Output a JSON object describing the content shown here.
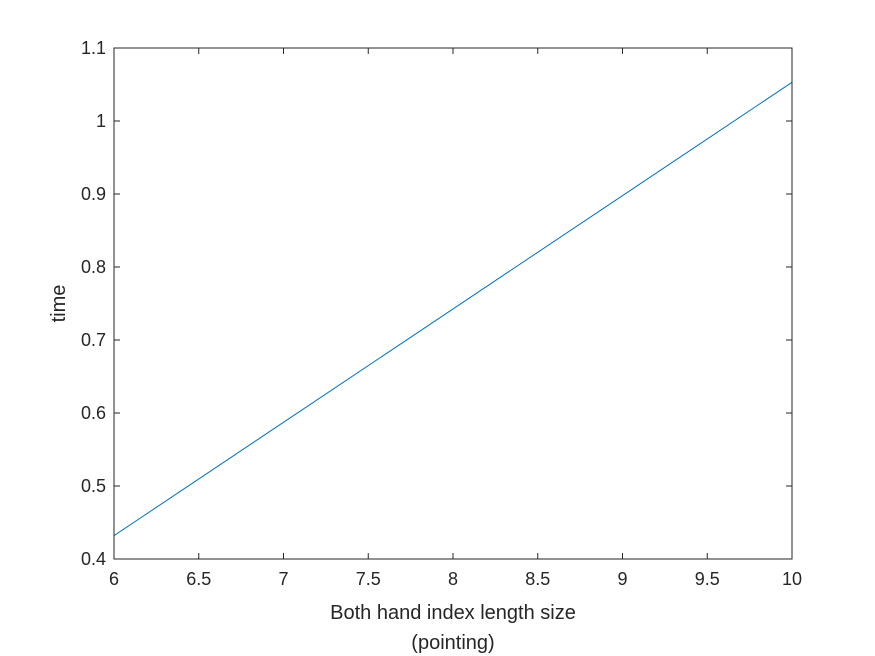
{
  "chart_data": {
    "type": "line",
    "title": "",
    "xlabel": [
      "Both hand index length size",
      "(pointing)"
    ],
    "ylabel": "time",
    "xlim": [
      6,
      10
    ],
    "ylim": [
      0.4,
      1.1
    ],
    "xticks": [
      "6",
      "6.5",
      "7",
      "7.5",
      "8",
      "8.5",
      "9",
      "9.5",
      "10"
    ],
    "yticks": [
      "0.4",
      "0.5",
      "0.6",
      "0.7",
      "0.8",
      "0.9",
      "1",
      "1.1"
    ],
    "grid": false,
    "series": [
      {
        "color": "#0072BD",
        "x": [
          6,
          10
        ],
        "y": [
          0.432,
          1.053
        ]
      }
    ]
  }
}
